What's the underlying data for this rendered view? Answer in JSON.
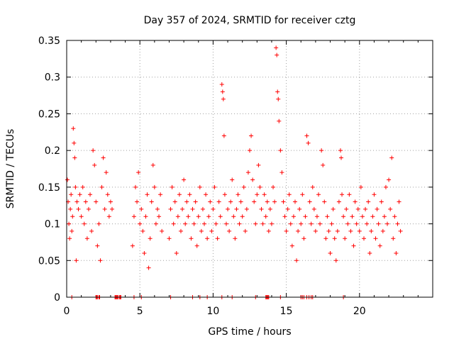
{
  "chart_data": {
    "type": "scatter",
    "title": "Day 357 of 2024, SRMTID for receiver cztg",
    "xlabel": "GPS time / hours",
    "ylabel": "SRMTID / TECUs",
    "xlim": [
      0,
      25
    ],
    "ylim": [
      0,
      0.35
    ],
    "x_ticks": [
      0,
      5,
      10,
      15,
      20
    ],
    "x_tick_labels": [
      "0",
      "5",
      "10",
      "15",
      "20"
    ],
    "y_ticks": [
      0,
      0.05,
      0.1,
      0.15,
      0.2,
      0.25,
      0.3,
      0.35
    ],
    "y_tick_labels": [
      "0",
      "0.05",
      "0.1",
      "0.15",
      "0.2",
      "0.25",
      "0.3",
      "0.35"
    ],
    "grid": true,
    "marker": "plus",
    "series": [
      {
        "name": "SRMTID",
        "color": "#ff0000",
        "points": [
          [
            0.05,
            0.16
          ],
          [
            0.1,
            0.13
          ],
          [
            0.15,
            0.1
          ],
          [
            0.2,
            0.08
          ],
          [
            0.25,
            0.12
          ],
          [
            0.3,
            0.14
          ],
          [
            0.35,
            0.09
          ],
          [
            0.4,
            0.11
          ],
          [
            0.45,
            0.23
          ],
          [
            0.5,
            0.21
          ],
          [
            0.55,
            0.19
          ],
          [
            0.6,
            0.15
          ],
          [
            0.65,
            0.05
          ],
          [
            0.7,
            0.13
          ],
          [
            0.8,
            0.12
          ],
          [
            0.9,
            0.14
          ],
          [
            1.0,
            0.11
          ],
          [
            1.1,
            0.15
          ],
          [
            1.2,
            0.1
          ],
          [
            1.3,
            0.13
          ],
          [
            1.4,
            0.08
          ],
          [
            1.5,
            0.12
          ],
          [
            1.6,
            0.14
          ],
          [
            1.7,
            0.09
          ],
          [
            1.8,
            0.2
          ],
          [
            1.9,
            0.18
          ],
          [
            2.0,
            0.13
          ],
          [
            2.1,
            0.07
          ],
          [
            2.2,
            0.1
          ],
          [
            2.3,
            0.05
          ],
          [
            2.4,
            0.15
          ],
          [
            2.5,
            0.19
          ],
          [
            2.6,
            0.12
          ],
          [
            2.7,
            0.17
          ],
          [
            2.8,
            0.14
          ],
          [
            2.9,
            0.11
          ],
          [
            3.0,
            0.13
          ],
          [
            3.1,
            0.12
          ],
          [
            4.5,
            0.07
          ],
          [
            4.6,
            0.11
          ],
          [
            4.7,
            0.15
          ],
          [
            4.8,
            0.13
          ],
          [
            4.9,
            0.17
          ],
          [
            5.0,
            0.1
          ],
          [
            5.1,
            0.12
          ],
          [
            5.2,
            0.09
          ],
          [
            5.3,
            0.06
          ],
          [
            5.4,
            0.11
          ],
          [
            5.5,
            0.14
          ],
          [
            5.6,
            0.04
          ],
          [
            5.7,
            0.08
          ],
          [
            5.8,
            0.13
          ],
          [
            5.9,
            0.18
          ],
          [
            6.0,
            0.15
          ],
          [
            6.1,
            0.1
          ],
          [
            6.2,
            0.12
          ],
          [
            6.3,
            0.11
          ],
          [
            6.4,
            0.14
          ],
          [
            6.5,
            0.09
          ],
          [
            7.0,
            0.08
          ],
          [
            7.1,
            0.12
          ],
          [
            7.2,
            0.15
          ],
          [
            7.3,
            0.1
          ],
          [
            7.4,
            0.13
          ],
          [
            7.5,
            0.06
          ],
          [
            7.6,
            0.11
          ],
          [
            7.7,
            0.14
          ],
          [
            7.8,
            0.09
          ],
          [
            7.9,
            0.12
          ],
          [
            8.0,
            0.16
          ],
          [
            8.1,
            0.1
          ],
          [
            8.2,
            0.13
          ],
          [
            8.3,
            0.11
          ],
          [
            8.4,
            0.14
          ],
          [
            8.5,
            0.08
          ],
          [
            8.6,
            0.12
          ],
          [
            8.7,
            0.1
          ],
          [
            8.8,
            0.13
          ],
          [
            8.9,
            0.07
          ],
          [
            9.0,
            0.11
          ],
          [
            9.1,
            0.15
          ],
          [
            9.2,
            0.09
          ],
          [
            9.3,
            0.12
          ],
          [
            9.4,
            0.1
          ],
          [
            9.5,
            0.14
          ],
          [
            9.6,
            0.08
          ],
          [
            9.7,
            0.11
          ],
          [
            9.8,
            0.13
          ],
          [
            9.9,
            0.09
          ],
          [
            10.0,
            0.12
          ],
          [
            10.1,
            0.15
          ],
          [
            10.2,
            0.1
          ],
          [
            10.3,
            0.08
          ],
          [
            10.4,
            0.13
          ],
          [
            10.5,
            0.11
          ],
          [
            10.6,
            0.29
          ],
          [
            10.65,
            0.28
          ],
          [
            10.7,
            0.27
          ],
          [
            10.75,
            0.22
          ],
          [
            10.8,
            0.14
          ],
          [
            10.9,
            0.1
          ],
          [
            11.0,
            0.12
          ],
          [
            11.1,
            0.09
          ],
          [
            11.2,
            0.13
          ],
          [
            11.3,
            0.16
          ],
          [
            11.4,
            0.11
          ],
          [
            11.5,
            0.08
          ],
          [
            11.6,
            0.12
          ],
          [
            11.7,
            0.14
          ],
          [
            11.8,
            0.1
          ],
          [
            11.9,
            0.13
          ],
          [
            12.0,
            0.11
          ],
          [
            12.1,
            0.15
          ],
          [
            12.2,
            0.09
          ],
          [
            12.3,
            0.12
          ],
          [
            12.4,
            0.17
          ],
          [
            12.5,
            0.2
          ],
          [
            12.6,
            0.22
          ],
          [
            12.7,
            0.16
          ],
          [
            12.8,
            0.13
          ],
          [
            12.9,
            0.1
          ],
          [
            13.0,
            0.14
          ],
          [
            13.1,
            0.18
          ],
          [
            13.2,
            0.15
          ],
          [
            13.3,
            0.12
          ],
          [
            13.4,
            0.1
          ],
          [
            13.5,
            0.14
          ],
          [
            13.6,
            0.11
          ],
          [
            13.7,
            0.13
          ],
          [
            13.8,
            0.09
          ],
          [
            13.9,
            0.12
          ],
          [
            14.0,
            0.1
          ],
          [
            14.1,
            0.15
          ],
          [
            14.2,
            0.13
          ],
          [
            14.3,
            0.34
          ],
          [
            14.35,
            0.33
          ],
          [
            14.4,
            0.28
          ],
          [
            14.45,
            0.27
          ],
          [
            14.5,
            0.24
          ],
          [
            14.6,
            0.2
          ],
          [
            14.7,
            0.17
          ],
          [
            14.8,
            0.13
          ],
          [
            14.9,
            0.11
          ],
          [
            15.0,
            0.09
          ],
          [
            15.1,
            0.12
          ],
          [
            15.2,
            0.14
          ],
          [
            15.3,
            0.1
          ],
          [
            15.4,
            0.07
          ],
          [
            15.5,
            0.11
          ],
          [
            15.6,
            0.13
          ],
          [
            15.7,
            0.05
          ],
          [
            15.8,
            0.09
          ],
          [
            15.9,
            0.12
          ],
          [
            16.0,
            0.1
          ],
          [
            16.1,
            0.14
          ],
          [
            16.2,
            0.08
          ],
          [
            16.3,
            0.11
          ],
          [
            16.4,
            0.22
          ],
          [
            16.5,
            0.21
          ],
          [
            16.6,
            0.13
          ],
          [
            16.7,
            0.1
          ],
          [
            16.8,
            0.15
          ],
          [
            16.9,
            0.12
          ],
          [
            17.0,
            0.09
          ],
          [
            17.1,
            0.11
          ],
          [
            17.2,
            0.14
          ],
          [
            17.3,
            0.1
          ],
          [
            17.4,
            0.2
          ],
          [
            17.5,
            0.18
          ],
          [
            17.6,
            0.13
          ],
          [
            17.7,
            0.08
          ],
          [
            17.8,
            0.11
          ],
          [
            17.9,
            0.09
          ],
          [
            18.0,
            0.06
          ],
          [
            18.1,
            0.1
          ],
          [
            18.2,
            0.12
          ],
          [
            18.3,
            0.08
          ],
          [
            18.4,
            0.05
          ],
          [
            18.5,
            0.09
          ],
          [
            18.6,
            0.13
          ],
          [
            18.7,
            0.2
          ],
          [
            18.75,
            0.19
          ],
          [
            18.8,
            0.14
          ],
          [
            18.9,
            0.11
          ],
          [
            19.0,
            0.08
          ],
          [
            19.1,
            0.12
          ],
          [
            19.2,
            0.1
          ],
          [
            19.3,
            0.14
          ],
          [
            19.4,
            0.09
          ],
          [
            19.5,
            0.11
          ],
          [
            19.6,
            0.07
          ],
          [
            19.7,
            0.13
          ],
          [
            19.8,
            0.1
          ],
          [
            19.9,
            0.12
          ],
          [
            20.0,
            0.09
          ],
          [
            20.1,
            0.15
          ],
          [
            20.2,
            0.11
          ],
          [
            20.3,
            0.08
          ],
          [
            20.4,
            0.12
          ],
          [
            20.5,
            0.1
          ],
          [
            20.6,
            0.13
          ],
          [
            20.7,
            0.06
          ],
          [
            20.8,
            0.09
          ],
          [
            20.9,
            0.11
          ],
          [
            21.0,
            0.14
          ],
          [
            21.1,
            0.08
          ],
          [
            21.2,
            0.12
          ],
          [
            21.3,
            0.1
          ],
          [
            21.4,
            0.07
          ],
          [
            21.5,
            0.13
          ],
          [
            21.6,
            0.09
          ],
          [
            21.7,
            0.11
          ],
          [
            21.8,
            0.15
          ],
          [
            21.9,
            0.1
          ],
          [
            22.0,
            0.16
          ],
          [
            22.1,
            0.12
          ],
          [
            22.2,
            0.19
          ],
          [
            22.3,
            0.08
          ],
          [
            22.4,
            0.11
          ],
          [
            22.5,
            0.06
          ],
          [
            22.6,
            0.1
          ],
          [
            22.7,
            0.13
          ],
          [
            22.8,
            0.09
          ]
        ]
      }
    ],
    "zero_points": [
      0.35,
      2.0,
      2.05,
      2.1,
      2.2,
      2.25,
      3.3,
      3.35,
      3.4,
      3.45,
      3.5,
      3.6,
      3.65,
      3.7,
      4.6,
      5.1,
      7.1,
      8.6,
      9.1,
      9.6,
      10.6,
      11.3,
      12.9,
      13.6,
      13.65,
      13.7,
      13.75,
      13.8,
      14.6,
      16.0,
      16.1,
      16.2,
      16.4,
      16.55,
      16.7,
      16.8,
      18.9
    ]
  }
}
